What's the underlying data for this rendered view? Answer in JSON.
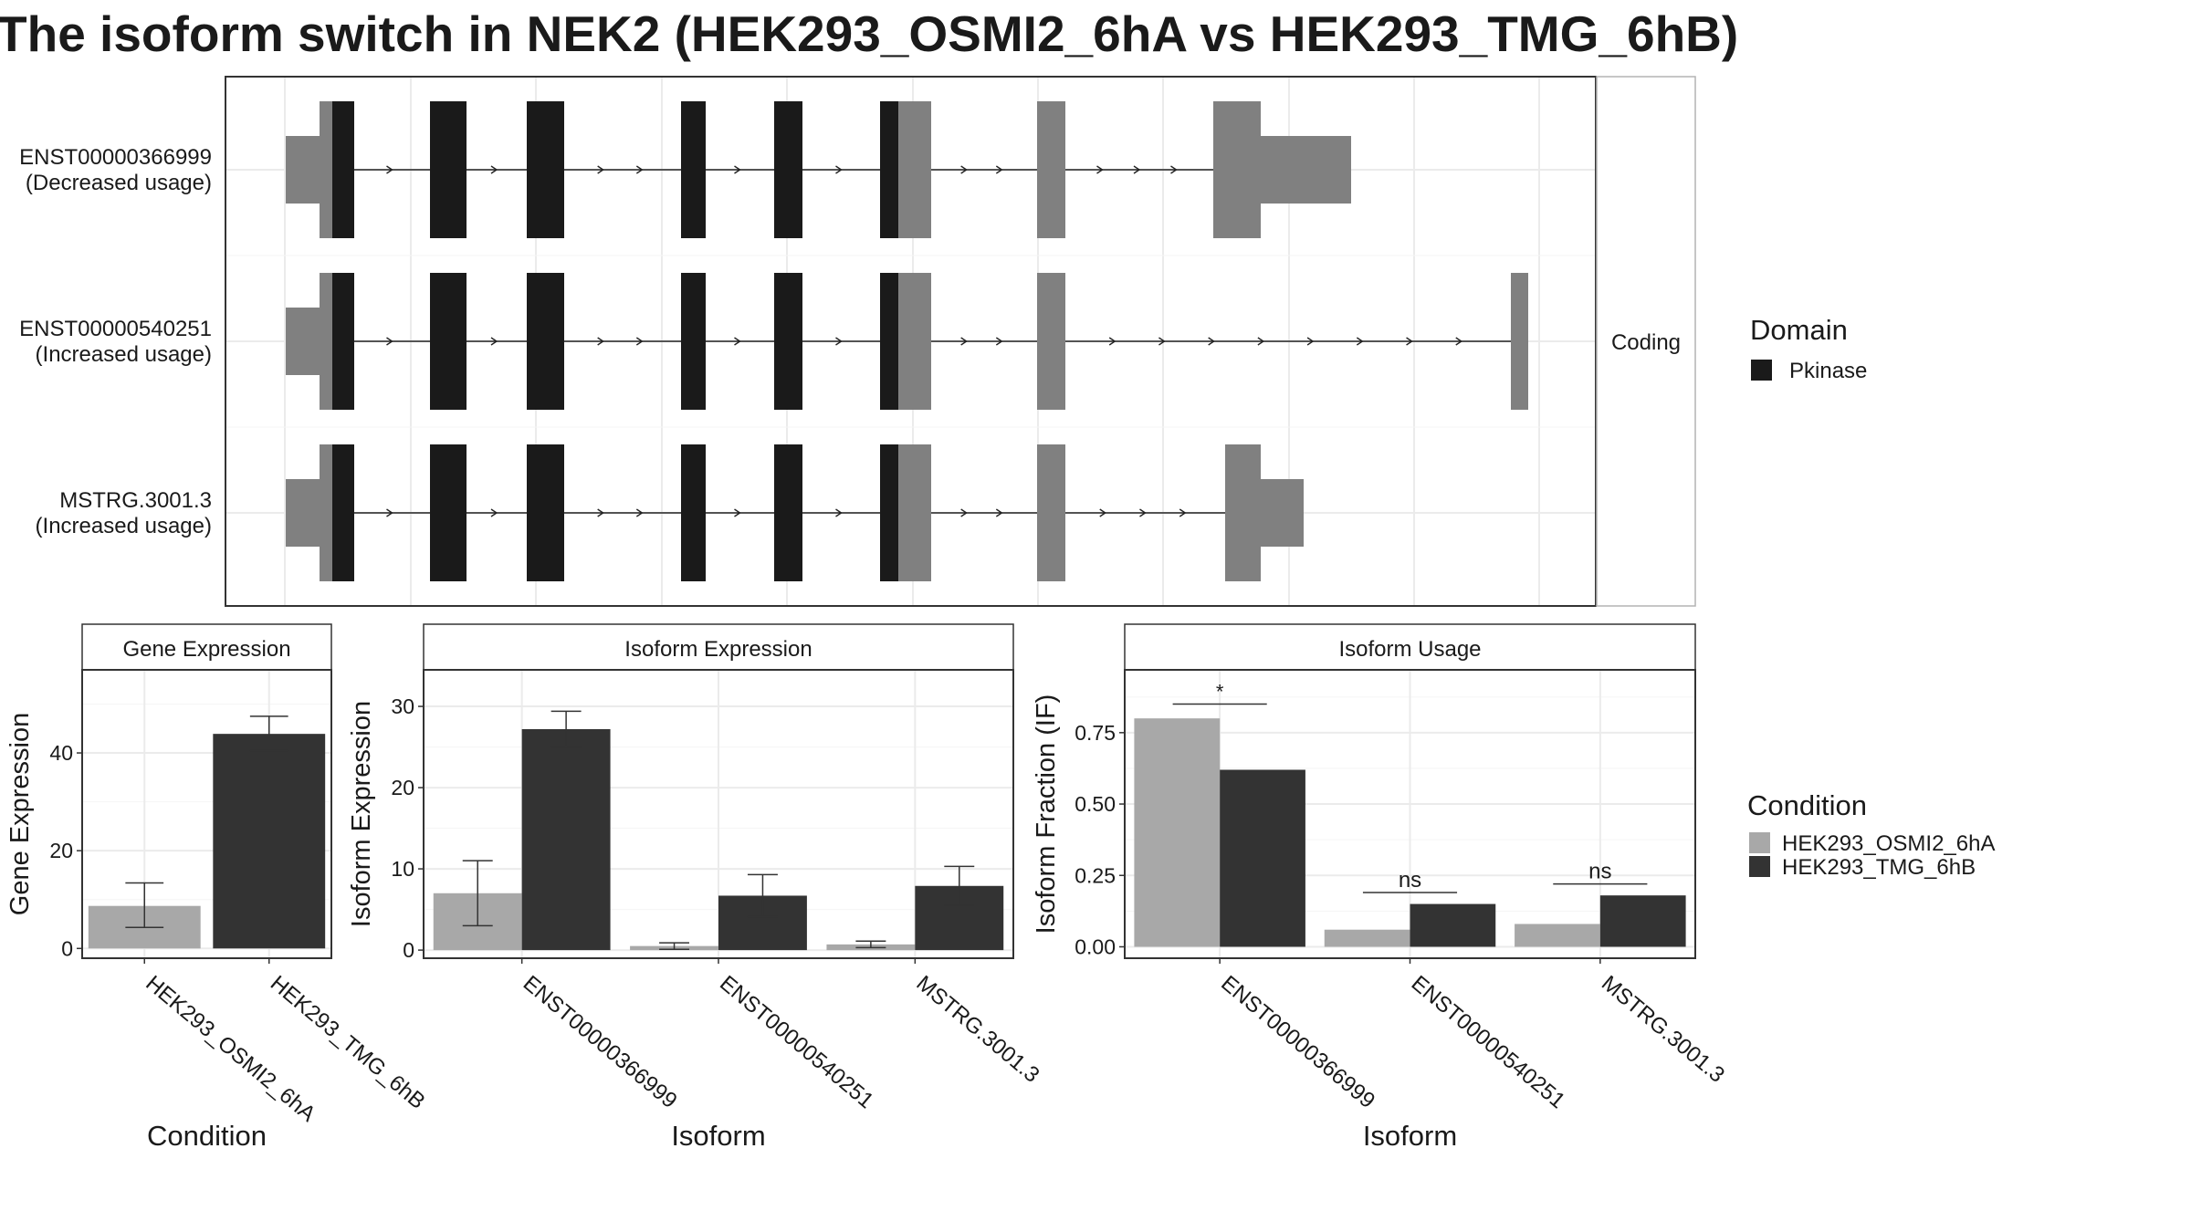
{
  "title": "The isoform switch in NEK2 (HEK293_OSMI2_6hA vs HEK293_TMG_6hB)",
  "colors": {
    "cond_a": "#a8a8a8",
    "cond_b": "#333333",
    "domain": "#1a1a1a",
    "utr": "#808080"
  },
  "chart_data": [
    {
      "type": "gene-structure",
      "strip_label": "Coding",
      "legend": {
        "title": "Domain",
        "items": [
          "Pkinase"
        ]
      },
      "transcripts": [
        {
          "name": "ENST00000366999",
          "status": "(Decreased usage)"
        },
        {
          "name": "ENST00000540251",
          "status": "(Increased usage)"
        },
        {
          "name": "MSTRG.3001.3",
          "status": "(Increased usage)"
        }
      ]
    },
    {
      "type": "bar",
      "title": "Gene Expression",
      "xlabel": "Condition",
      "ylabel": "Gene Expression",
      "ylim": [
        -2,
        57
      ],
      "yticks": [
        0,
        20,
        40
      ],
      "categories": [
        "HEK293_OSMI2_6hA",
        "HEK293_TMG_6hB"
      ],
      "series": [
        {
          "name": "HEK293_OSMI2_6hA",
          "values": [
            8.7,
            null
          ],
          "errors": [
            [
              4.3,
              13.4
            ],
            null
          ]
        },
        {
          "name": "HEK293_TMG_6hB",
          "values": [
            null,
            43.9
          ],
          "errors": [
            null,
            [
              40.5,
              47.5
            ]
          ]
        }
      ]
    },
    {
      "type": "bar",
      "title": "Isoform Expression",
      "xlabel": "Isoform",
      "ylabel": "Isoform Expression",
      "ylim": [
        -1,
        34.5
      ],
      "yticks": [
        0,
        10,
        20,
        30
      ],
      "categories": [
        "ENST00000366999",
        "ENST00000540251",
        "MSTRG.3001.3"
      ],
      "series": [
        {
          "name": "HEK293_OSMI2_6hA",
          "values": [
            7.0,
            0.5,
            0.7
          ],
          "errors": [
            [
              3.0,
              11.0
            ],
            [
              0.1,
              0.9
            ],
            [
              0.3,
              1.1
            ]
          ]
        },
        {
          "name": "HEK293_TMG_6hB",
          "values": [
            27.2,
            6.7,
            7.9
          ],
          "errors": [
            [
              25.0,
              29.4
            ],
            [
              4.1,
              9.3
            ],
            [
              5.5,
              10.3
            ]
          ]
        }
      ]
    },
    {
      "type": "bar",
      "title": "Isoform Usage",
      "xlabel": "Isoform",
      "ylabel": "Isoform Fraction (IF)",
      "ylim": [
        -0.04,
        0.97
      ],
      "yticks": [
        "0.00",
        "0.25",
        "0.50",
        "0.75"
      ],
      "categories": [
        "ENST00000366999",
        "ENST00000540251",
        "MSTRG.3001.3"
      ],
      "series": [
        {
          "name": "HEK293_OSMI2_6hA",
          "values": [
            0.8,
            0.06,
            0.08
          ]
        },
        {
          "name": "HEK293_TMG_6hB",
          "values": [
            0.62,
            0.15,
            0.18
          ]
        }
      ],
      "significance": [
        {
          "label": "*",
          "y": 0.85
        },
        {
          "label": "ns",
          "y": 0.19
        },
        {
          "label": "ns",
          "y": 0.22
        }
      ]
    }
  ],
  "condition_legend": {
    "title": "Condition",
    "items": [
      "HEK293_OSMI2_6hA",
      "HEK293_TMG_6hB"
    ]
  }
}
